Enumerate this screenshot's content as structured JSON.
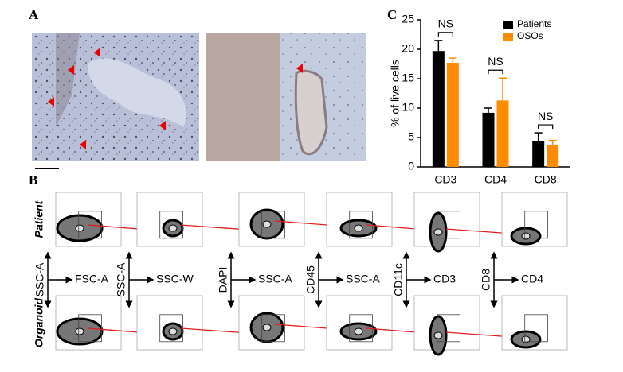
{
  "panels": {
    "a": "A",
    "b": "B",
    "c": "C"
  },
  "chart_data": {
    "type": "bar",
    "ylabel": "% of live cells",
    "categories": [
      "CD3",
      "CD4",
      "CD8"
    ],
    "series": [
      {
        "name": "Patients",
        "color": "#000000",
        "values": [
          19.7,
          9.2,
          4.4
        ],
        "errors": [
          1.8,
          0.8,
          1.4
        ]
      },
      {
        "name": "OSOs",
        "color": "#ff8c00",
        "values": [
          17.7,
          11.3,
          3.7
        ],
        "errors": [
          0.8,
          3.8,
          0.8
        ]
      }
    ],
    "annotations": [
      "NS",
      "NS",
      "NS"
    ],
    "ylim": [
      0,
      25
    ],
    "yticks": [
      0,
      5,
      10,
      15,
      20,
      25
    ],
    "legend": "upper right"
  },
  "flow": {
    "rows": [
      "Patient",
      "Organoid"
    ],
    "axes": [
      {
        "y": "SSC-A",
        "x": "FSC-A"
      },
      {
        "y": "SSC-A",
        "x": "SSC-W"
      },
      {
        "y": "DAPI",
        "x": "SSC-A"
      },
      {
        "y": "CD45",
        "x": "SSC-A"
      },
      {
        "y": "CD11c",
        "x": "CD3"
      },
      {
        "y": "CD8",
        "x": "CD4"
      }
    ]
  }
}
